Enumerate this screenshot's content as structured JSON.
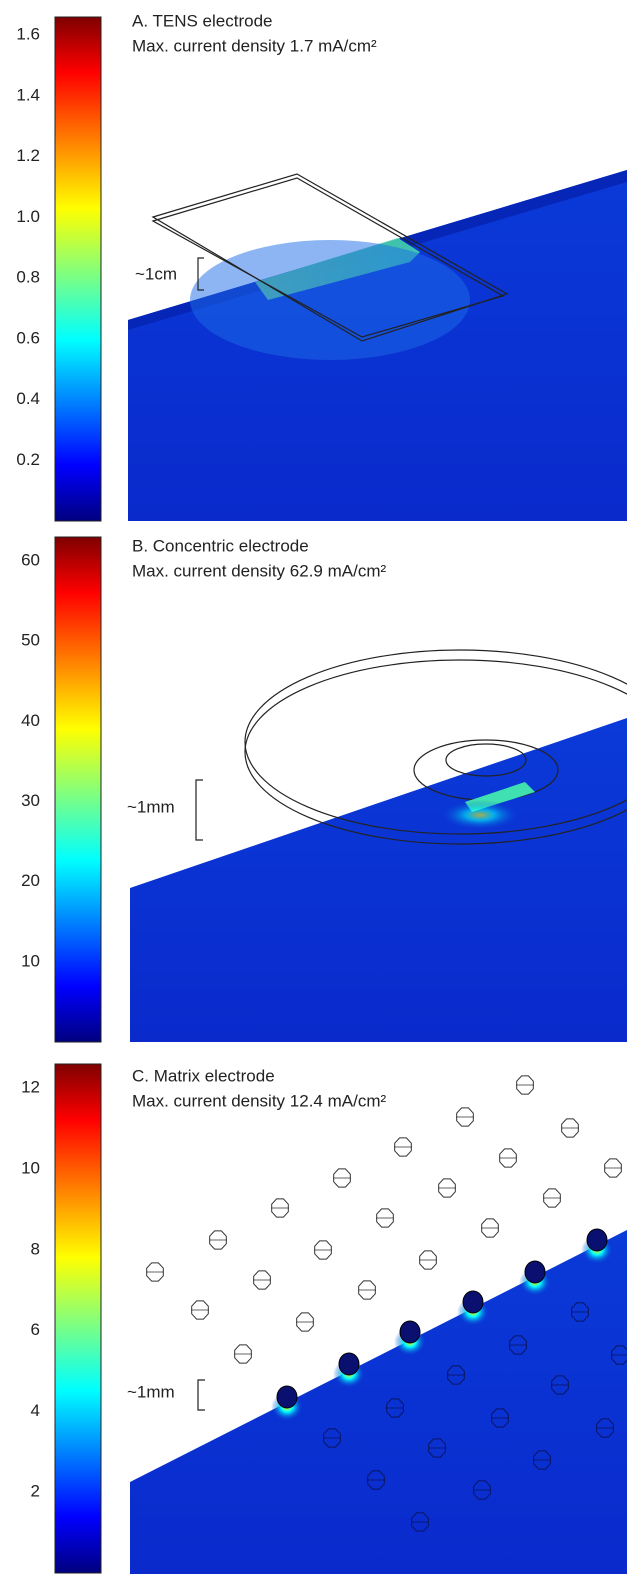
{
  "panels": [
    {
      "title": "A. TENS electrode",
      "subtitle": "Max. current density 1.7 mA/cm²",
      "scale_label": "~1cm",
      "colorbar": {
        "lim": [
          0,
          1.66
        ],
        "ticks": [
          0.2,
          0.4,
          0.6,
          0.8,
          {
            "value": 1,
            "label": "1.0"
          },
          1.2,
          1.4,
          1.6
        ]
      }
    },
    {
      "title": "B. Concentric electrode",
      "subtitle": "Max. current density 62.9 mA/cm²",
      "scale_label": "~1mm",
      "colorbar": {
        "lim": [
          0,
          63
        ],
        "ticks": [
          10,
          20,
          30,
          40,
          50,
          60
        ]
      }
    },
    {
      "title": "C. Matrix electrode",
      "subtitle": "Max. current density 12.4 mA/cm²",
      "scale_label": "~1mm",
      "colorbar": {
        "lim": [
          0,
          12.6
        ],
        "ticks": [
          2,
          4,
          6,
          8,
          10,
          12
        ]
      }
    }
  ]
}
